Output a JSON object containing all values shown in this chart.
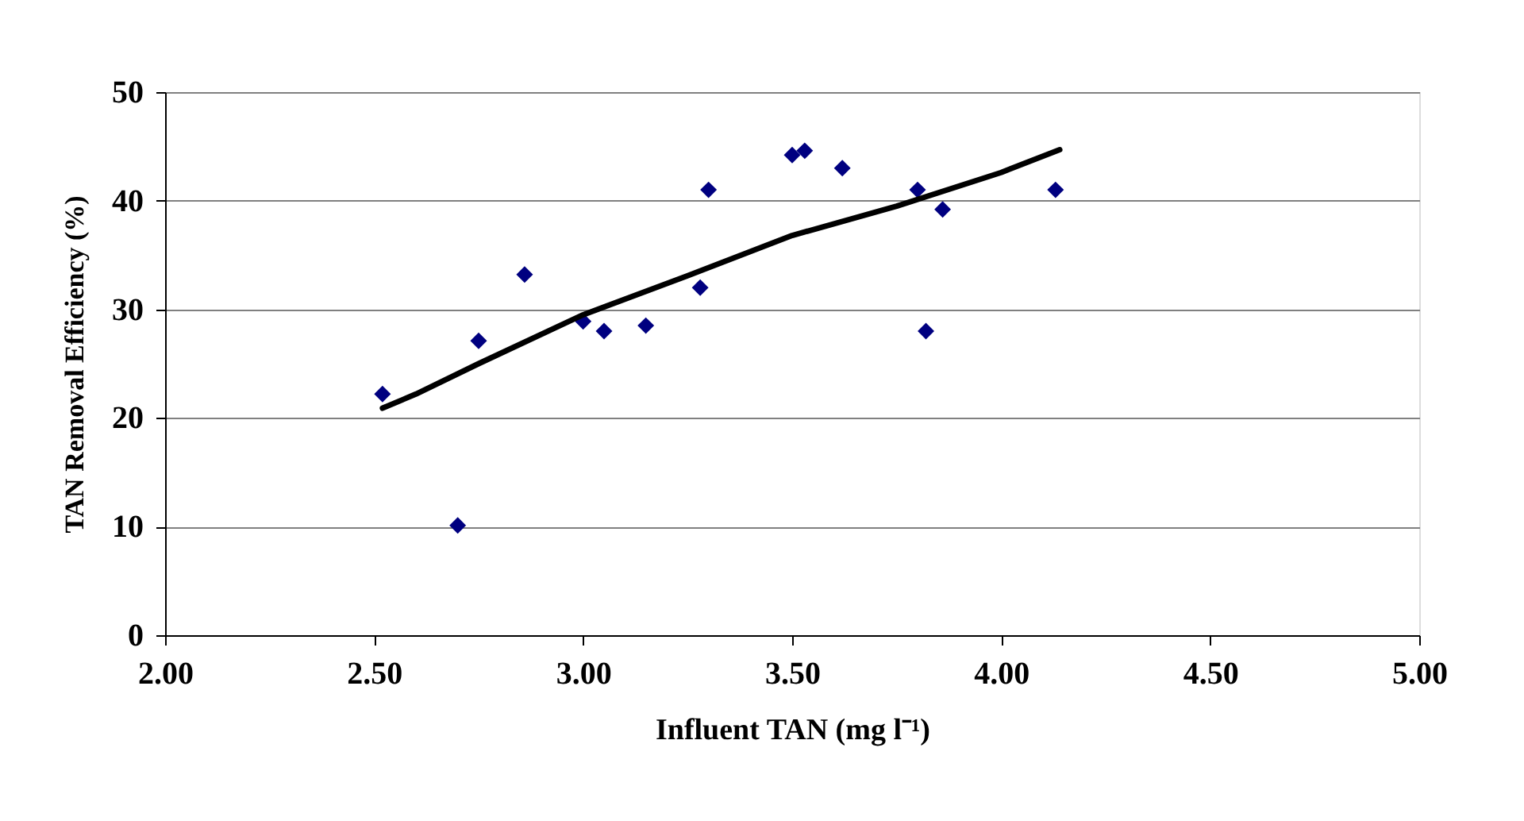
{
  "chart_data": {
    "type": "scatter",
    "xlabel": "Influent TAN (mg l⁻¹)",
    "ylabel": "TAN Removal Efficiency (%)",
    "xlim": [
      2.0,
      5.0
    ],
    "xticks": [
      {
        "value": 2.0,
        "label": "2.00"
      },
      {
        "value": 2.5,
        "label": "2.50"
      },
      {
        "value": 3.0,
        "label": "3.00"
      },
      {
        "value": 3.5,
        "label": "3.50"
      },
      {
        "value": 4.0,
        "label": "4.00"
      },
      {
        "value": 4.5,
        "label": "4.50"
      },
      {
        "value": 5.0,
        "label": "5.00"
      }
    ],
    "ylim": [
      0,
      50
    ],
    "yticks": [
      0,
      10,
      20,
      30,
      40,
      50
    ],
    "grid": "y",
    "legend": false,
    "series": [
      {
        "color": "#000080",
        "marker": "diamond",
        "x": [
          2.52,
          2.7,
          2.75,
          2.86,
          3.0,
          3.05,
          3.15,
          3.28,
          3.3,
          3.5,
          3.53,
          3.62,
          3.8,
          3.82,
          3.86,
          4.13
        ],
        "values": [
          22.2,
          10.1,
          27.1,
          33.2,
          28.9,
          28.0,
          28.5,
          32.0,
          41.0,
          44.2,
          44.6,
          43.0,
          41.0,
          28.0,
          39.2,
          41.0
        ]
      },
      {
        "type": "line",
        "color": "#000000",
        "marker": "none",
        "line_style": "solid",
        "x": [
          2.52,
          2.6,
          2.75,
          3.0,
          3.25,
          3.5,
          3.75,
          4.0,
          4.14
        ],
        "values": [
          20.9,
          22.2,
          25.0,
          29.5,
          33.1,
          36.8,
          39.5,
          42.6,
          44.7
        ]
      }
    ]
  }
}
